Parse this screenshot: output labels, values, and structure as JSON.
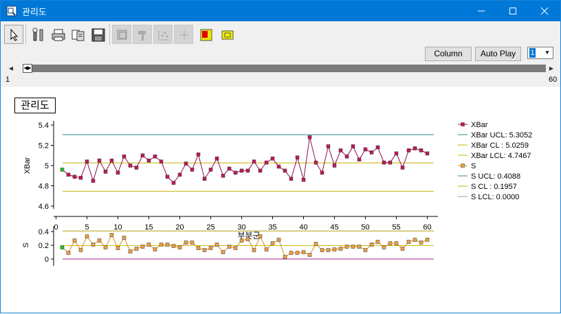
{
  "window": {
    "title": "관리도"
  },
  "controls": {
    "column_label": "Column",
    "autoplay_label": "Auto Play",
    "selected_value": "1"
  },
  "range": {
    "start": "1",
    "end": "60"
  },
  "colors": {
    "titlebar": "#0078d7",
    "xbar_marker": "#c2185b",
    "xbar_line": "#8b0a50",
    "s_marker": "#f0a040",
    "s_line": "#d49020",
    "ucl": "#2a8a8a",
    "cl": "#c8b400",
    "s_lcl": "#a0208a",
    "first_point": "#20c020"
  },
  "chart_data": [
    {
      "type": "line",
      "title": "관리도",
      "ylabel": "XBar",
      "ylim": [
        4.6,
        5.4
      ],
      "yticks": [
        "4.6",
        "4.8",
        "5",
        "5.2",
        "5.4"
      ],
      "x": [
        1,
        2,
        3,
        4,
        5,
        6,
        7,
        8,
        9,
        10,
        11,
        12,
        13,
        14,
        15,
        16,
        17,
        18,
        19,
        20,
        21,
        22,
        23,
        24,
        25,
        26,
        27,
        28,
        29,
        30,
        31,
        32,
        33,
        34,
        35,
        36,
        37,
        38,
        39,
        40,
        41,
        42,
        43,
        44,
        45,
        46,
        47,
        48,
        49,
        50,
        51,
        52,
        53,
        54,
        55,
        56,
        57,
        58,
        59,
        60
      ],
      "series": [
        {
          "name": "XBar",
          "values": [
            4.96,
            4.91,
            4.89,
            4.88,
            5.04,
            4.85,
            5.05,
            4.94,
            5.05,
            4.93,
            5.09,
            5.0,
            4.98,
            5.1,
            5.05,
            5.09,
            5.04,
            4.89,
            4.83,
            4.91,
            5.02,
            4.96,
            5.11,
            4.87,
            4.96,
            5.07,
            4.9,
            4.97,
            4.93,
            4.95,
            4.95,
            5.04,
            4.95,
            5.03,
            5.07,
            4.99,
            4.95,
            4.87,
            5.08,
            4.86,
            5.28,
            5.03,
            4.93,
            5.19,
            5.0,
            5.15,
            5.09,
            5.19,
            5.06,
            5.16,
            5.13,
            5.18,
            5.03,
            5.03,
            5.12,
            4.98,
            5.15,
            5.17,
            5.15,
            5.12
          ]
        }
      ],
      "limits": {
        "ucl": 5.3052,
        "cl": 5.0259,
        "lcl": 4.7467
      },
      "legend": [
        "XBar",
        "XBar UCL: 5.3052",
        "XBar CL : 5.0259",
        "XBar LCL: 4.7467"
      ]
    },
    {
      "type": "line",
      "xlabel": "부분군",
      "ylabel": "S",
      "xlim": [
        0,
        61
      ],
      "xticks": [
        "0",
        "5",
        "10",
        "15",
        "20",
        "25",
        "30",
        "35",
        "40",
        "45",
        "50",
        "55",
        "60"
      ],
      "ylim": [
        -0.1,
        0.5
      ],
      "yticks": [
        "0",
        "0.2",
        "0.4"
      ],
      "series": [
        {
          "name": "S",
          "values": [
            0.17,
            0.09,
            0.27,
            0.13,
            0.33,
            0.21,
            0.27,
            0.17,
            0.35,
            0.16,
            0.31,
            0.11,
            0.15,
            0.18,
            0.21,
            0.14,
            0.21,
            0.21,
            0.19,
            0.17,
            0.24,
            0.24,
            0.16,
            0.13,
            0.16,
            0.21,
            0.1,
            0.18,
            0.16,
            0.27,
            0.29,
            0.13,
            0.33,
            0.14,
            0.23,
            0.28,
            0.03,
            0.09,
            0.09,
            0.1,
            0.06,
            0.22,
            0.13,
            0.13,
            0.14,
            0.15,
            0.18,
            0.18,
            0.18,
            0.13,
            0.21,
            0.25,
            0.17,
            0.23,
            0.23,
            0.15,
            0.25,
            0.28,
            0.24,
            0.28
          ]
        }
      ],
      "limits": {
        "ucl": 0.4088,
        "cl": 0.1957,
        "lcl": 0.0
      },
      "legend": [
        "S",
        "S UCL: 0.4088",
        "S CL : 0.1957",
        "S LCL: 0.0000"
      ]
    }
  ]
}
